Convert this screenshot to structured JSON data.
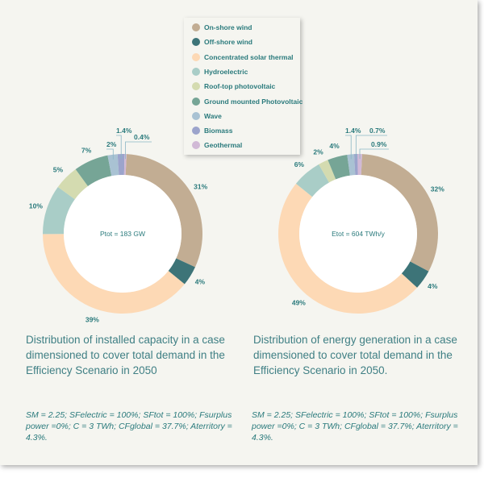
{
  "chart_data": [
    {
      "type": "donut",
      "center_label": "Ptot = 183 GW",
      "categories": [
        "On-shore wind",
        "Off-shore wind",
        "Concentrated solar thermal",
        "Hydroelectric",
        "Roof-top photovoltaic",
        "Ground mounted Photovoltaic",
        "Wave",
        "Biomass",
        "Geothermal"
      ],
      "values": [
        31,
        4,
        39,
        10,
        5,
        7,
        2,
        1.4,
        0.4
      ],
      "labels": [
        "31%",
        "4%",
        "39%",
        "10%",
        "5%",
        "7%",
        "2%",
        "1.4%",
        "0.4%"
      ],
      "title": "Distribution of installed capacity in a case dimensioned to cover total demand in the Efficiency Scenario in 2050",
      "params": "SM = 2.25; SFelectric = 100%; SFtot = 100%; Fsurplus power =0%; C = 3 TWh; CFglobal = 37.7%; Aterritory = 4.3%."
    },
    {
      "type": "donut",
      "center_label": "Etot = 604 TWh/y",
      "categories": [
        "On-shore wind",
        "Off-shore wind",
        "Concentrated solar thermal",
        "Hydroelectric",
        "Roof-top photovoltaic",
        "Ground mounted Photovoltaic",
        "Wave",
        "Biomass",
        "Geothermal"
      ],
      "values": [
        32,
        4,
        49,
        6,
        2,
        4,
        1.4,
        0.7,
        0.9
      ],
      "labels": [
        "32%",
        "4%",
        "49%",
        "6%",
        "2%",
        "4%",
        "1.4%",
        "0.7%",
        "0.9%"
      ],
      "title": "Distribution of energy generation in a case dimensioned to cover total demand in the Efficiency Scenario in 2050.",
      "params": "SM = 2.25; SFelectric = 100%; SFtot = 100%; Fsurplus power =0%; C = 3 TWh; CFglobal = 37.7%; Aterritory = 4.3%."
    }
  ],
  "legend": [
    "On-shore wind",
    "Off-shore wind",
    "Concentrated solar thermal",
    "Hydroelectric",
    "Roof-top photovoltaic",
    "Ground mounted Photovoltaic",
    "Wave",
    "Biomass",
    "Geothermal"
  ],
  "colors": [
    "#c2ad93",
    "#3d7478",
    "#fdd9b5",
    "#a9cdc7",
    "#d4dbb0",
    "#76a596",
    "#a9c2d3",
    "#9ca4cc",
    "#d1b9d6"
  ]
}
